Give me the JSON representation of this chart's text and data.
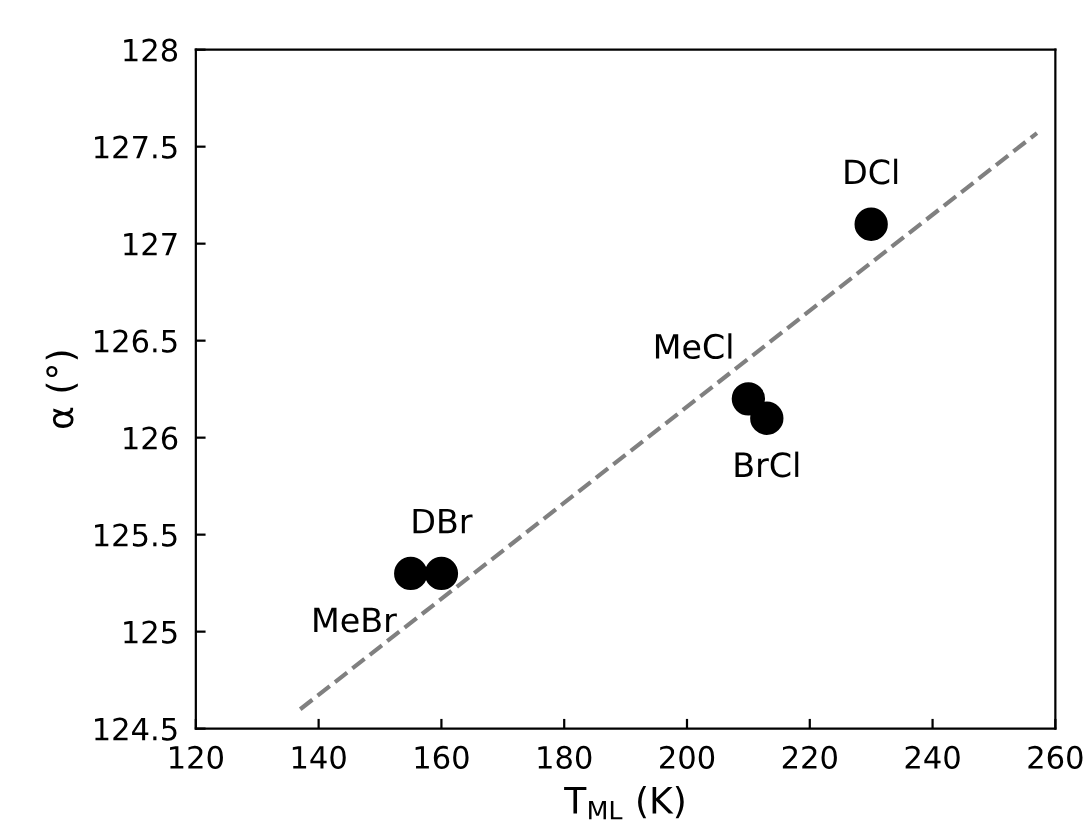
{
  "chart_data": {
    "type": "scatter",
    "xlabel": "T$_{ML}$ (K)",
    "ylabel": "α (°)",
    "xlim": [
      120,
      260
    ],
    "xticks": [
      120,
      140,
      160,
      180,
      200,
      220,
      240,
      260
    ],
    "ylim": [
      124.5,
      128
    ],
    "yticks": [
      124.5,
      125,
      {
        "value": 125.5,
        "label": "125.5"
      },
      126,
      {
        "value": 126.5,
        "label": "126.5"
      },
      127,
      {
        "value": 127.5,
        "label": "127.5"
      },
      128
    ],
    "grid": false,
    "legend": false,
    "marker": "circle",
    "series": [
      {
        "color": "#000000",
        "x": [
          155,
          160,
          210,
          213,
          230
        ],
        "values": [
          125.3,
          125.3,
          126.2,
          126.1,
          127.1
        ],
        "value_labels": [
          "MeBr",
          "DBr",
          "MeCl",
          "BrCl",
          "DCl"
        ]
      },
      {
        "type": "line",
        "color": "#808080",
        "line_style": "dashed",
        "marker": "none",
        "x": [
          137,
          257
        ],
        "values": [
          124.6,
          127.57
        ]
      }
    ]
  }
}
